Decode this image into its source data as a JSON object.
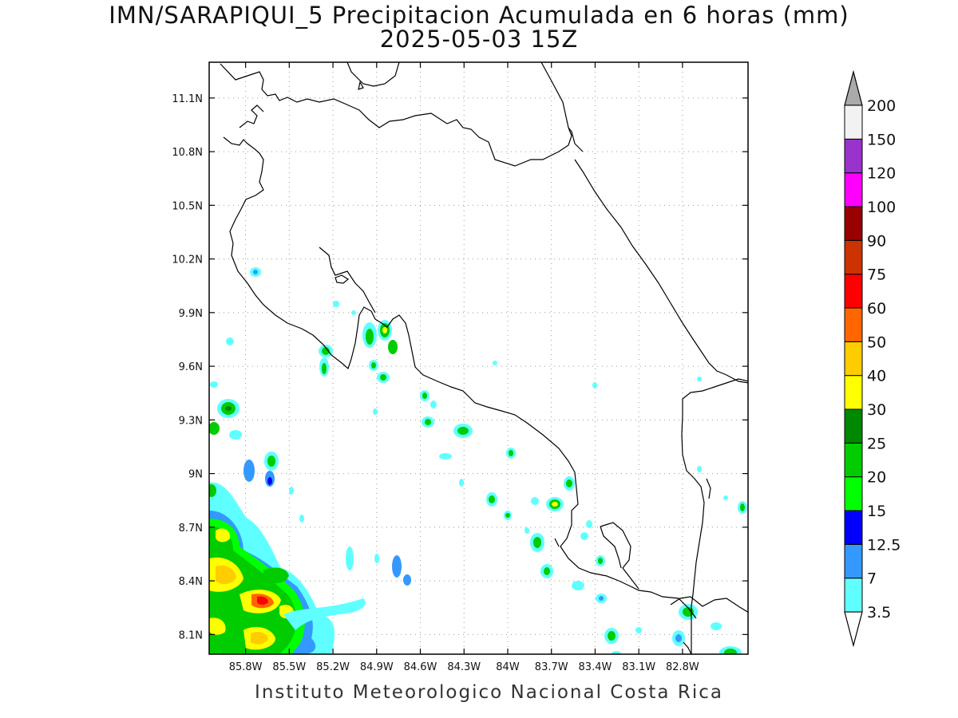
{
  "title": {
    "line1": "IMN/SARAPIQUI_5 Precipitacion Acumulada en 6 horas (mm)",
    "line2": "2025-05-03 15Z"
  },
  "footer": "Instituto Meteorologico Nacional Costa Rica",
  "map": {
    "lon_range": [
      -86.05,
      -82.35
    ],
    "lat_range": [
      7.99,
      11.3
    ],
    "x_ticks": [
      "85.8W",
      "85.5W",
      "85.2W",
      "84.9W",
      "84.6W",
      "84.3W",
      "84W",
      "83.7W",
      "83.4W",
      "83.1W",
      "82.8W"
    ],
    "x_tick_values": [
      -85.8,
      -85.5,
      -85.2,
      -84.9,
      -84.6,
      -84.3,
      -84.0,
      -83.7,
      -83.4,
      -83.1,
      -82.8
    ],
    "y_ticks": [
      "11.1N",
      "10.8N",
      "10.5N",
      "10.2N",
      "9.9N",
      "9.6N",
      "9.3N",
      "9N",
      "8.7N",
      "8.4N",
      "8.1N"
    ],
    "y_tick_values": [
      11.1,
      10.8,
      10.5,
      10.2,
      9.9,
      9.6,
      9.3,
      9.0,
      8.7,
      8.4,
      8.1
    ],
    "grid": "dotted"
  },
  "colorbar": {
    "labels": [
      "3.5",
      "7",
      "12.5",
      "15",
      "20",
      "25",
      "30",
      "40",
      "50",
      "60",
      "75",
      "90",
      "100",
      "120",
      "150",
      "200"
    ],
    "colors": [
      "#60ffff",
      "#3399ff",
      "#0000ff",
      "#00ff00",
      "#00cc00",
      "#008800",
      "#ffff00",
      "#ffcc00",
      "#ff6600",
      "#ff0000",
      "#cc3300",
      "#990000",
      "#ff00ff",
      "#9933cc",
      "#f2f2f2"
    ],
    "arrow_top": "#aaaaaa",
    "arrow_bottom": "#ffffff"
  }
}
